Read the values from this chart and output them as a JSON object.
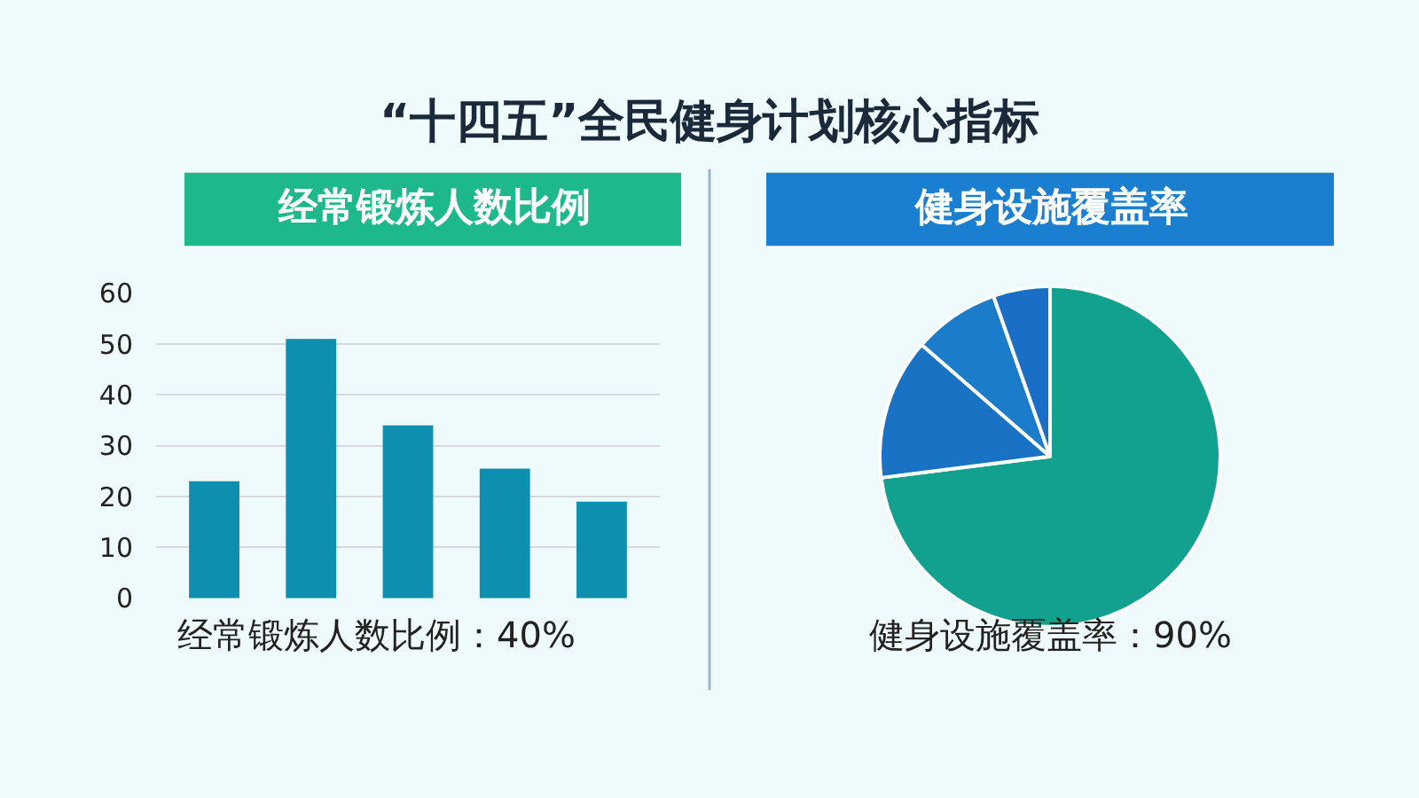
{
  "chart_data": [
    {
      "type": "other",
      "title": "“十四五”全民健身计划核心指标"
    },
    {
      "type": "bar",
      "title": "经常锻炼人数比例",
      "categories": [
        null,
        null,
        null,
        null,
        null
      ],
      "values": [
        23,
        51,
        34,
        25.5,
        19
      ],
      "color": "#0e8fb0",
      "ylim": [
        0,
        60
      ],
      "yticks": [
        0,
        10,
        20,
        30,
        40,
        50,
        60
      ],
      "grid": "y",
      "annotations": [
        "经常锻炼人数比例：40%"
      ]
    },
    {
      "type": "pie",
      "title": "健身设施覆盖率",
      "categories": [
        null,
        null,
        null,
        null
      ],
      "values": [
        73,
        13.4,
        8.2,
        5.4
      ],
      "colors": [
        "#12a08f",
        "#1a72c4",
        "#1b7ccb",
        "#1a6ec6"
      ],
      "annotations": [
        "健身设施覆盖率：90%"
      ]
    }
  ]
}
